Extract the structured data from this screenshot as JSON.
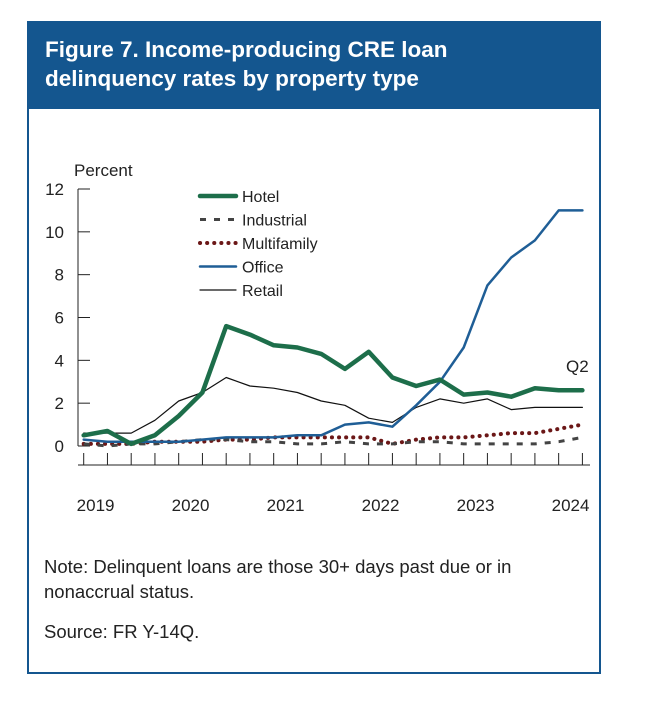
{
  "colors": {
    "hotel": "#1d6e4a",
    "industrial": "#444444",
    "multifamily": "#6b1717",
    "office": "#1f5e96",
    "retail": "#111111",
    "frame": "#14568f"
  },
  "chart_data": {
    "type": "line",
    "title": "Figure 7. Income-producing CRE loan delinquency rates by property type",
    "ylabel": "Percent",
    "xlabel": "",
    "ylim": [
      0,
      12
    ],
    "yticks": [
      "0",
      "2",
      "4",
      "6",
      "8",
      "10",
      "12"
    ],
    "year_labels": [
      "2019",
      "2020",
      "2021",
      "2022",
      "2023",
      "2024"
    ],
    "x": [
      2019.0,
      2019.25,
      2019.5,
      2019.75,
      2020.0,
      2020.25,
      2020.5,
      2020.75,
      2021.0,
      2021.25,
      2021.5,
      2021.75,
      2022.0,
      2022.25,
      2022.5,
      2022.75,
      2023.0,
      2023.25,
      2023.5,
      2023.75,
      2024.0,
      2024.25
    ],
    "annotation": "Q2",
    "series": [
      {
        "name": "Hotel",
        "key": "hotel",
        "style": "thick",
        "values": [
          0.5,
          0.7,
          0.1,
          0.5,
          1.4,
          2.5,
          5.6,
          5.2,
          4.7,
          4.6,
          4.3,
          3.6,
          4.4,
          3.2,
          2.8,
          3.1,
          2.4,
          2.5,
          2.3,
          2.7,
          2.6,
          2.6
        ]
      },
      {
        "name": "Industrial",
        "key": "industrial",
        "style": "dashed",
        "values": [
          0.1,
          0.0,
          0.1,
          0.1,
          0.2,
          0.3,
          0.3,
          0.2,
          0.2,
          0.1,
          0.1,
          0.2,
          0.1,
          0.1,
          0.2,
          0.2,
          0.1,
          0.1,
          0.1,
          0.1,
          0.2,
          0.4
        ]
      },
      {
        "name": "Multifamily",
        "key": "multifamily",
        "style": "dotted",
        "values": [
          0.1,
          0.1,
          0.1,
          0.2,
          0.2,
          0.2,
          0.3,
          0.3,
          0.4,
          0.4,
          0.4,
          0.4,
          0.4,
          0.1,
          0.3,
          0.4,
          0.4,
          0.5,
          0.6,
          0.6,
          0.8,
          1.0
        ]
      },
      {
        "name": "Office",
        "key": "office",
        "style": "medium",
        "values": [
          0.3,
          0.2,
          0.2,
          0.2,
          0.2,
          0.3,
          0.4,
          0.4,
          0.4,
          0.5,
          0.5,
          1.0,
          1.1,
          0.9,
          1.9,
          3.0,
          4.6,
          7.5,
          8.8,
          9.6,
          11.0,
          11.0
        ]
      },
      {
        "name": "Retail",
        "key": "retail",
        "style": "thin",
        "values": [
          0.6,
          0.6,
          0.6,
          1.2,
          2.1,
          2.5,
          3.2,
          2.8,
          2.7,
          2.5,
          2.1,
          1.9,
          1.3,
          1.1,
          1.8,
          2.2,
          2.0,
          2.2,
          1.7,
          1.8,
          1.8,
          1.8
        ]
      }
    ]
  },
  "note": "Note: Delinquent loans are those 30+ days past due or in nonaccrual status.",
  "source": "Source: FR Y-14Q."
}
